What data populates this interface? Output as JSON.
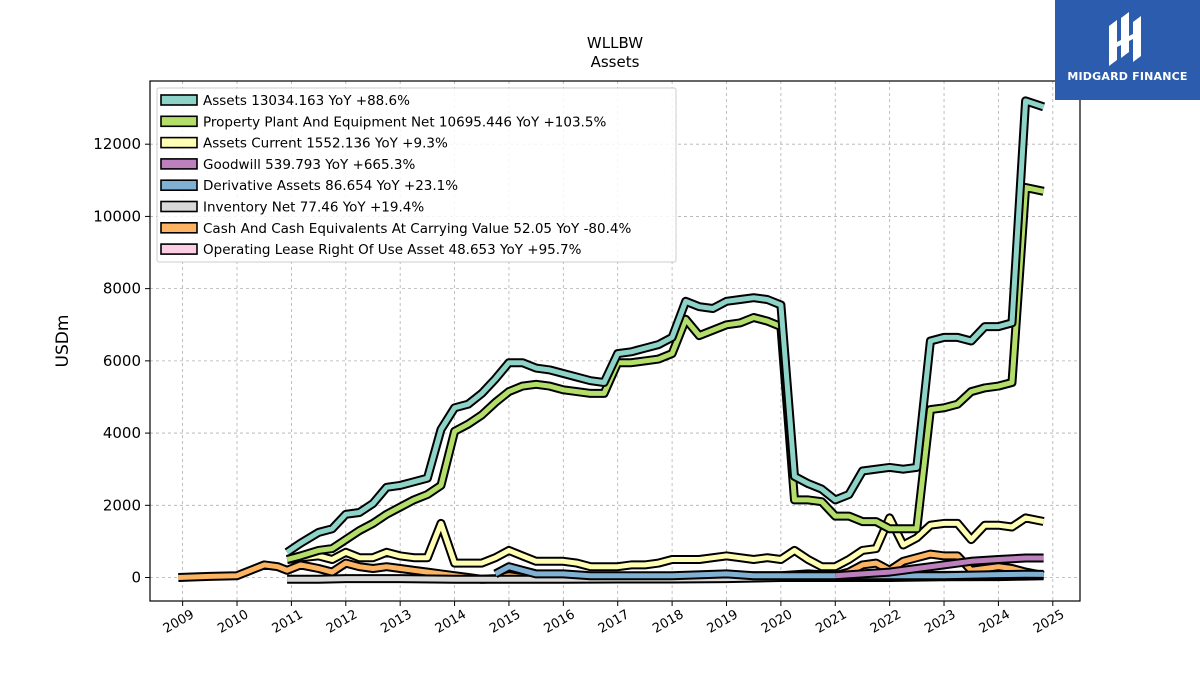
{
  "brand": {
    "name": "MIDGARD FINANCE",
    "bg_color": "#2b5cad"
  },
  "chart_data": {
    "type": "line",
    "title": "WLLBW",
    "subtitle": "Assets",
    "xlabel": "",
    "ylabel": "USDm",
    "xlim": [
      2008.4,
      2025.5
    ],
    "ylim": [
      -650,
      13750
    ],
    "x_ticks": [
      "2009",
      "2010",
      "2011",
      "2012",
      "2013",
      "2014",
      "2015",
      "2016",
      "2017",
      "2018",
      "2019",
      "2020",
      "2021",
      "2022",
      "2023",
      "2024",
      "2025"
    ],
    "y_ticks": [
      0,
      2000,
      4000,
      6000,
      8000,
      10000,
      12000
    ],
    "grid": true,
    "legend_position": "top-left",
    "series": [
      {
        "name": "Assets",
        "legend": "Assets  13034.163 YoY +88.6%",
        "color": "#8dd3c7",
        "points": [
          [
            2010.92,
            700
          ],
          [
            2011.17,
            950
          ],
          [
            2011.5,
            1250
          ],
          [
            2011.75,
            1350
          ],
          [
            2012.0,
            1750
          ],
          [
            2012.25,
            1800
          ],
          [
            2012.5,
            2050
          ],
          [
            2012.75,
            2500
          ],
          [
            2013.0,
            2550
          ],
          [
            2013.25,
            2650
          ],
          [
            2013.5,
            2750
          ],
          [
            2013.75,
            4100
          ],
          [
            2014.0,
            4700
          ],
          [
            2014.25,
            4800
          ],
          [
            2014.5,
            5100
          ],
          [
            2014.75,
            5500
          ],
          [
            2015.0,
            5950
          ],
          [
            2015.25,
            5950
          ],
          [
            2015.5,
            5800
          ],
          [
            2015.75,
            5750
          ],
          [
            2016.0,
            5650
          ],
          [
            2016.25,
            5550
          ],
          [
            2016.5,
            5450
          ],
          [
            2016.75,
            5400
          ],
          [
            2017.0,
            6200
          ],
          [
            2017.25,
            6250
          ],
          [
            2017.5,
            6350
          ],
          [
            2017.75,
            6450
          ],
          [
            2018.0,
            6650
          ],
          [
            2018.25,
            7650
          ],
          [
            2018.5,
            7500
          ],
          [
            2018.75,
            7450
          ],
          [
            2019.0,
            7650
          ],
          [
            2019.25,
            7700
          ],
          [
            2019.5,
            7750
          ],
          [
            2019.75,
            7700
          ],
          [
            2020.0,
            7550
          ],
          [
            2020.25,
            2800
          ],
          [
            2020.5,
            2600
          ],
          [
            2020.75,
            2450
          ],
          [
            2021.0,
            2150
          ],
          [
            2021.25,
            2300
          ],
          [
            2021.5,
            2950
          ],
          [
            2021.75,
            3000
          ],
          [
            2022.0,
            3050
          ],
          [
            2022.25,
            3000
          ],
          [
            2022.5,
            3050
          ],
          [
            2022.75,
            6550
          ],
          [
            2023.0,
            6650
          ],
          [
            2023.25,
            6650
          ],
          [
            2023.5,
            6550
          ],
          [
            2023.75,
            6950
          ],
          [
            2024.0,
            6950
          ],
          [
            2024.25,
            7050
          ],
          [
            2024.5,
            13200
          ],
          [
            2024.83,
            13034
          ]
        ]
      },
      {
        "name": "Property Plant And Equipment Net",
        "legend": "Property Plant And Equipment Net  10695.446 YoY +103.5%",
        "color": "#b3de69",
        "points": [
          [
            2010.92,
            500
          ],
          [
            2011.17,
            600
          ],
          [
            2011.5,
            750
          ],
          [
            2011.75,
            800
          ],
          [
            2012.0,
            1050
          ],
          [
            2012.25,
            1300
          ],
          [
            2012.5,
            1500
          ],
          [
            2012.75,
            1750
          ],
          [
            2013.0,
            1950
          ],
          [
            2013.25,
            2150
          ],
          [
            2013.5,
            2300
          ],
          [
            2013.75,
            2550
          ],
          [
            2014.0,
            4050
          ],
          [
            2014.25,
            4250
          ],
          [
            2014.5,
            4500
          ],
          [
            2014.75,
            4850
          ],
          [
            2015.0,
            5150
          ],
          [
            2015.25,
            5300
          ],
          [
            2015.5,
            5350
          ],
          [
            2015.75,
            5300
          ],
          [
            2016.0,
            5200
          ],
          [
            2016.25,
            5150
          ],
          [
            2016.5,
            5100
          ],
          [
            2016.75,
            5100
          ],
          [
            2017.0,
            5950
          ],
          [
            2017.25,
            5950
          ],
          [
            2017.5,
            6000
          ],
          [
            2017.75,
            6050
          ],
          [
            2018.0,
            6200
          ],
          [
            2018.25,
            7150
          ],
          [
            2018.5,
            6700
          ],
          [
            2018.75,
            6850
          ],
          [
            2019.0,
            7000
          ],
          [
            2019.25,
            7050
          ],
          [
            2019.5,
            7200
          ],
          [
            2019.75,
            7100
          ],
          [
            2020.0,
            6950
          ],
          [
            2020.25,
            2150
          ],
          [
            2020.5,
            2150
          ],
          [
            2020.75,
            2100
          ],
          [
            2021.0,
            1700
          ],
          [
            2021.25,
            1700
          ],
          [
            2021.5,
            1550
          ],
          [
            2021.75,
            1550
          ],
          [
            2022.0,
            1350
          ],
          [
            2022.25,
            1350
          ],
          [
            2022.5,
            1350
          ],
          [
            2022.75,
            4650
          ],
          [
            2023.0,
            4700
          ],
          [
            2023.25,
            4800
          ],
          [
            2023.5,
            5150
          ],
          [
            2023.75,
            5250
          ],
          [
            2024.0,
            5300
          ],
          [
            2024.25,
            5400
          ],
          [
            2024.5,
            10800
          ],
          [
            2024.83,
            10695
          ]
        ]
      },
      {
        "name": "Assets Current",
        "legend": "Assets Current  1552.136 YoY +9.3%",
        "color": "#ffffb3",
        "points": [
          [
            2010.92,
            500
          ],
          [
            2011.17,
            550
          ],
          [
            2011.5,
            600
          ],
          [
            2011.75,
            500
          ],
          [
            2012.0,
            700
          ],
          [
            2012.25,
            550
          ],
          [
            2012.5,
            550
          ],
          [
            2012.75,
            700
          ],
          [
            2013.0,
            600
          ],
          [
            2013.25,
            550
          ],
          [
            2013.5,
            550
          ],
          [
            2013.75,
            1500
          ],
          [
            2014.0,
            400
          ],
          [
            2014.25,
            400
          ],
          [
            2014.5,
            400
          ],
          [
            2014.75,
            550
          ],
          [
            2015.0,
            750
          ],
          [
            2015.25,
            600
          ],
          [
            2015.5,
            450
          ],
          [
            2015.75,
            450
          ],
          [
            2016.0,
            450
          ],
          [
            2016.25,
            400
          ],
          [
            2016.5,
            300
          ],
          [
            2016.75,
            300
          ],
          [
            2017.0,
            300
          ],
          [
            2017.25,
            350
          ],
          [
            2017.5,
            350
          ],
          [
            2017.75,
            400
          ],
          [
            2018.0,
            500
          ],
          [
            2018.25,
            500
          ],
          [
            2018.5,
            500
          ],
          [
            2018.75,
            550
          ],
          [
            2019.0,
            600
          ],
          [
            2019.25,
            550
          ],
          [
            2019.5,
            500
          ],
          [
            2019.75,
            550
          ],
          [
            2020.0,
            500
          ],
          [
            2020.25,
            750
          ],
          [
            2020.5,
            500
          ],
          [
            2020.75,
            300
          ],
          [
            2021.0,
            300
          ],
          [
            2021.25,
            500
          ],
          [
            2021.5,
            750
          ],
          [
            2021.75,
            800
          ],
          [
            2022.0,
            1650
          ],
          [
            2022.25,
            900
          ],
          [
            2022.5,
            1100
          ],
          [
            2022.75,
            1450
          ],
          [
            2023.0,
            1500
          ],
          [
            2023.25,
            1500
          ],
          [
            2023.5,
            1050
          ],
          [
            2023.75,
            1450
          ],
          [
            2024.0,
            1450
          ],
          [
            2024.25,
            1400
          ],
          [
            2024.5,
            1650
          ],
          [
            2024.83,
            1552
          ]
        ]
      },
      {
        "name": "Goodwill",
        "legend": "Goodwill  539.793 YoY +665.3%",
        "color": "#bc80bd",
        "points": [
          [
            2021.0,
            50
          ],
          [
            2021.5,
            100
          ],
          [
            2022.0,
            150
          ],
          [
            2022.5,
            250
          ],
          [
            2023.0,
            350
          ],
          [
            2023.25,
            400
          ],
          [
            2023.5,
            450
          ],
          [
            2024.0,
            500
          ],
          [
            2024.5,
            540
          ],
          [
            2024.83,
            540
          ]
        ]
      },
      {
        "name": "Derivative Assets",
        "legend": "Derivative Assets  86.654 YoY +23.1%",
        "color": "#80b1d3",
        "points": [
          [
            2014.75,
            100
          ],
          [
            2015.0,
            300
          ],
          [
            2015.25,
            200
          ],
          [
            2015.5,
            100
          ],
          [
            2016.0,
            100
          ],
          [
            2016.5,
            50
          ],
          [
            2017.0,
            50
          ],
          [
            2018.0,
            50
          ],
          [
            2019.0,
            100
          ],
          [
            2019.5,
            50
          ],
          [
            2020.0,
            50
          ],
          [
            2020.5,
            50
          ],
          [
            2021.0,
            50
          ],
          [
            2022.0,
            50
          ],
          [
            2023.0,
            50
          ],
          [
            2024.0,
            80
          ],
          [
            2024.5,
            90
          ],
          [
            2024.83,
            87
          ]
        ]
      },
      {
        "name": "Inventory Net",
        "legend": "Inventory Net  77.46 YoY +19.4%",
        "color": "#d9d9d9",
        "points": [
          [
            2010.92,
            -50
          ],
          [
            2011.5,
            -50
          ],
          [
            2012.0,
            -30
          ],
          [
            2013.0,
            -30
          ],
          [
            2014.0,
            -50
          ],
          [
            2015.0,
            -50
          ],
          [
            2016.0,
            -50
          ],
          [
            2017.0,
            -40
          ],
          [
            2018.0,
            -40
          ],
          [
            2019.0,
            -30
          ],
          [
            2020.0,
            0
          ],
          [
            2021.0,
            20
          ],
          [
            2022.0,
            50
          ],
          [
            2023.0,
            60
          ],
          [
            2024.0,
            65
          ],
          [
            2024.5,
            70
          ],
          [
            2024.83,
            77
          ]
        ]
      },
      {
        "name": "Cash And Cash Equivalents At Carrying Value",
        "legend": "Cash And Cash Equivalents At Carrying Value  52.05 YoY -80.4%",
        "color": "#fdb462",
        "points": [
          [
            2008.92,
            0
          ],
          [
            2009.5,
            30
          ],
          [
            2010.0,
            50
          ],
          [
            2010.5,
            350
          ],
          [
            2010.75,
            300
          ],
          [
            2010.92,
            200
          ],
          [
            2011.17,
            350
          ],
          [
            2011.5,
            250
          ],
          [
            2011.75,
            150
          ],
          [
            2012.0,
            400
          ],
          [
            2012.25,
            300
          ],
          [
            2012.5,
            250
          ],
          [
            2012.75,
            300
          ],
          [
            2013.0,
            250
          ],
          [
            2013.25,
            200
          ],
          [
            2013.5,
            150
          ],
          [
            2013.75,
            100
          ],
          [
            2014.0,
            50
          ],
          [
            2014.25,
            0
          ],
          [
            2014.5,
            -50
          ],
          [
            2014.75,
            -30
          ],
          [
            2015.0,
            50
          ],
          [
            2015.25,
            0
          ],
          [
            2015.5,
            0
          ],
          [
            2016.0,
            0
          ],
          [
            2016.5,
            0
          ],
          [
            2017.0,
            0
          ],
          [
            2017.5,
            0
          ],
          [
            2018.0,
            0
          ],
          [
            2018.5,
            0
          ],
          [
            2019.0,
            50
          ],
          [
            2019.5,
            50
          ],
          [
            2020.0,
            50
          ],
          [
            2020.5,
            100
          ],
          [
            2021.0,
            50
          ],
          [
            2021.25,
            150
          ],
          [
            2021.5,
            350
          ],
          [
            2021.75,
            400
          ],
          [
            2022.0,
            200
          ],
          [
            2022.25,
            450
          ],
          [
            2022.5,
            550
          ],
          [
            2022.75,
            650
          ],
          [
            2023.0,
            600
          ],
          [
            2023.25,
            600
          ],
          [
            2023.5,
            200
          ],
          [
            2023.75,
            250
          ],
          [
            2024.0,
            300
          ],
          [
            2024.25,
            250
          ],
          [
            2024.5,
            150
          ],
          [
            2024.83,
            52
          ]
        ]
      },
      {
        "name": "Operating Lease Right Of Use Asset",
        "legend": "Operating Lease Right Of Use Asset  48.653 YoY +95.7%",
        "color": "#fccde5",
        "points": [
          [
            2019.17,
            0
          ],
          [
            2020.0,
            0
          ],
          [
            2021.0,
            0
          ],
          [
            2022.0,
            0
          ],
          [
            2023.0,
            20
          ],
          [
            2024.0,
            25
          ],
          [
            2024.5,
            40
          ],
          [
            2024.83,
            49
          ]
        ]
      }
    ]
  }
}
